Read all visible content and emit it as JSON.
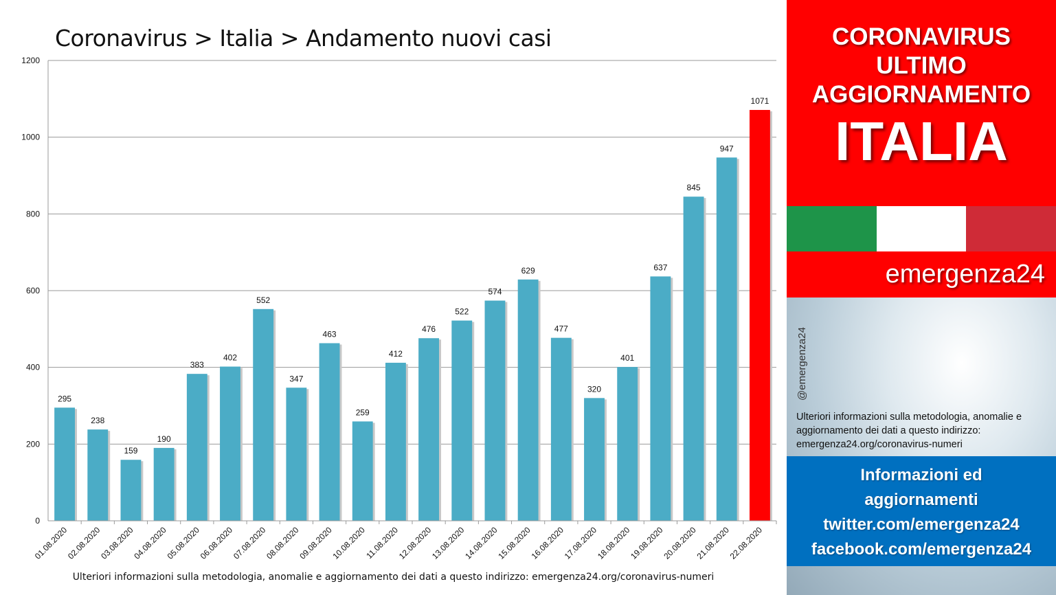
{
  "chart_data": {
    "type": "bar",
    "title": "Coronavirus > Italia > Andamento nuovi casi",
    "categories": [
      "01.08.2020",
      "02.08.2020",
      "03.08.2020",
      "04.08.2020",
      "05.08.2020",
      "06.08.2020",
      "07.08.2020",
      "08.08.2020",
      "09.08.2020",
      "10.08.2020",
      "11.08.2020",
      "12.08.2020",
      "13.08.2020",
      "14.08.2020",
      "15.08.2020",
      "16.08.2020",
      "17.08.2020",
      "18.08.2020",
      "19.08.2020",
      "20.08.2020",
      "21.08.2020",
      "22.08.2020"
    ],
    "values": [
      295,
      238,
      159,
      190,
      383,
      402,
      552,
      347,
      463,
      259,
      412,
      476,
      522,
      574,
      629,
      477,
      320,
      401,
      637,
      845,
      947,
      1071
    ],
    "data_labels": true,
    "ylim": [
      0,
      1200
    ],
    "yticks": [
      0,
      200,
      400,
      600,
      800,
      1000,
      1200
    ],
    "grid": true,
    "legend": "none",
    "bar_color": "#4bacc6",
    "highlight_last_color": "#ff0000",
    "footer": "Ulteriori informazioni sulla metodologia, anomalie e aggiornamento dei dati a questo indirizzo: emergenza24.org/coronavirus-numeri"
  },
  "side": {
    "header_line1": "CORONAVIRUS",
    "header_line2": "ULTIMO",
    "header_line3": "AGGIORNAMENTO",
    "header_big": "ITALIA",
    "brand": "emergenza24",
    "handle": "@emergenza24",
    "info_text": "Ulteriori informazioni sulla metodologia, anomalie e aggiornamento dei dati a questo indirizzo: emergenza24.org/coronavirus-numeri",
    "links_line1": "Informazioni ed",
    "links_line2": "aggiornamenti",
    "links_line3": "twitter.com/emergenza24",
    "links_line4": "facebook.com/emergenza24",
    "colors": {
      "red": "#ff0000",
      "blue": "#0070c0",
      "flag_green": "#1e9449",
      "flag_white": "#ffffff",
      "flag_red": "#cf2b37"
    }
  }
}
